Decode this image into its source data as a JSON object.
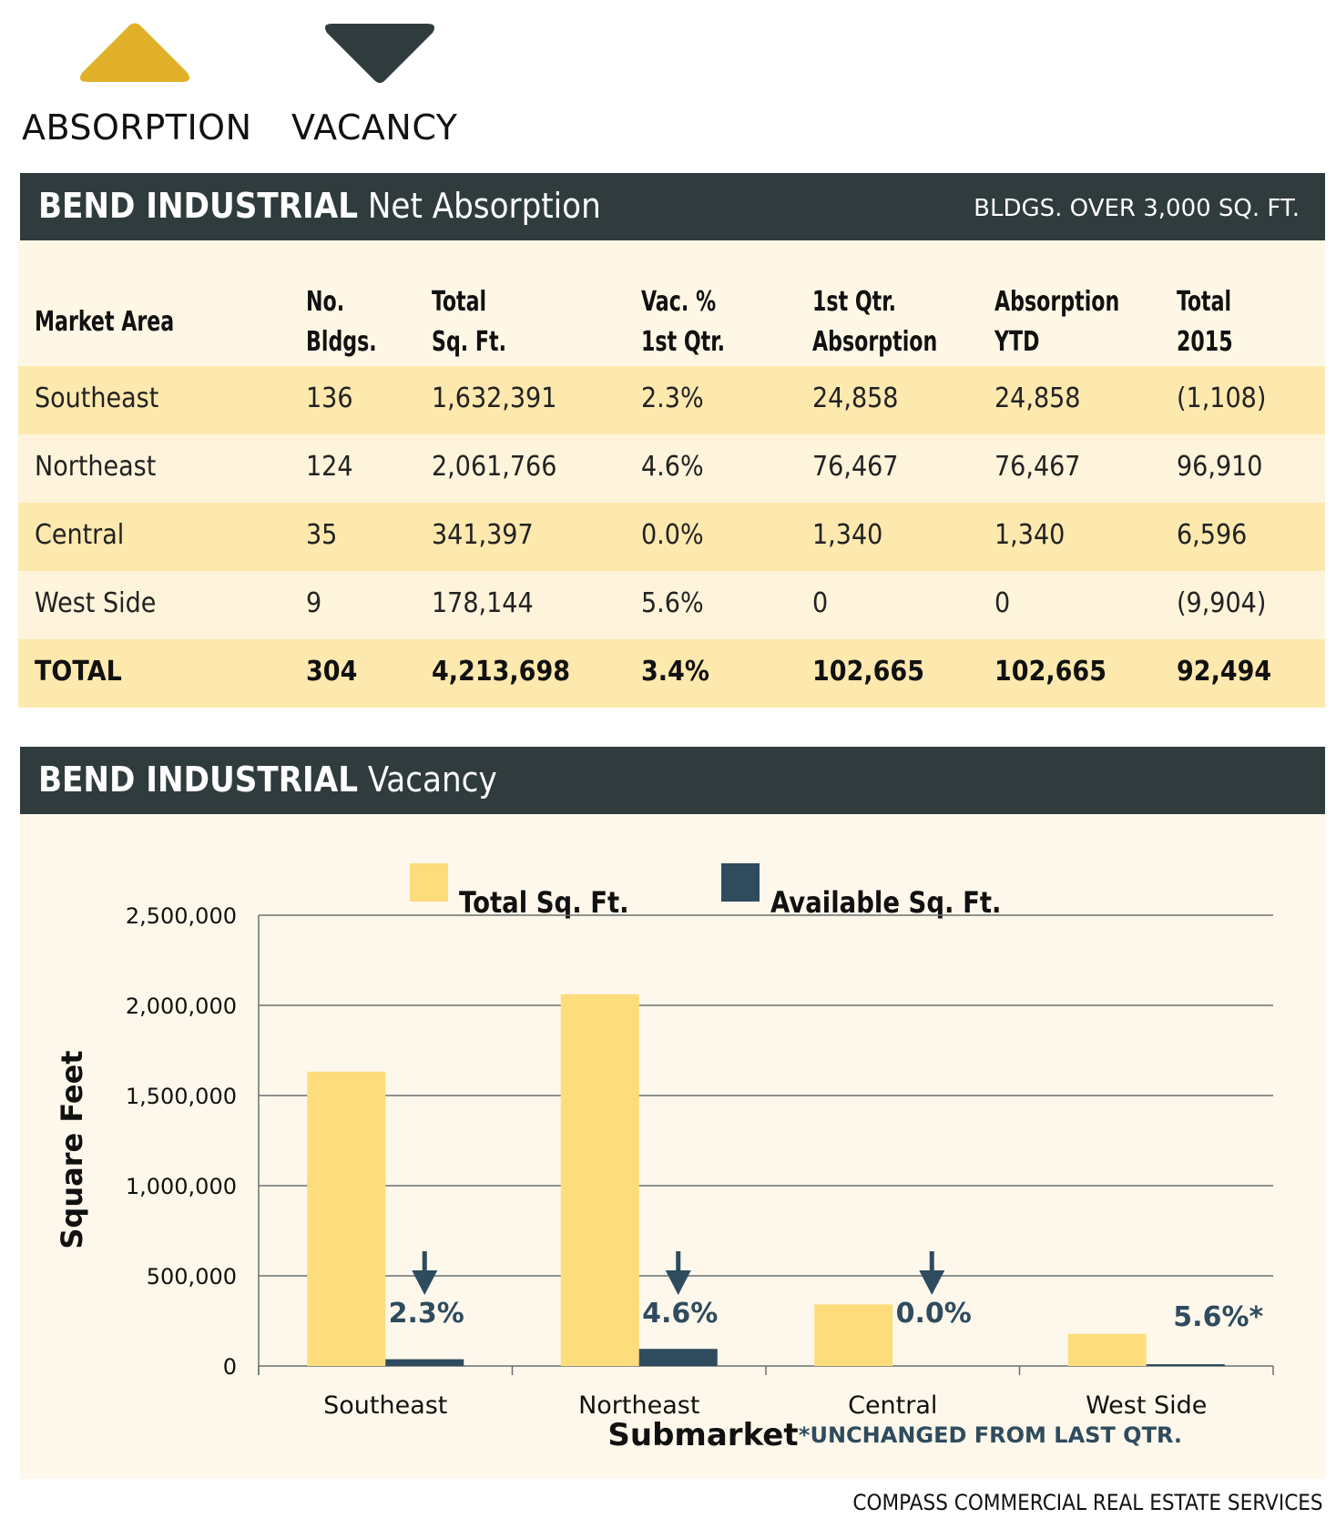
{
  "legend_top": {
    "absorption": {
      "label": "ABSORPTION",
      "icon": "triangle-up-icon",
      "color": "#e0b128"
    },
    "vacancy": {
      "label": "VACANCY",
      "icon": "triangle-down-icon",
      "color": "#2f3b3c"
    }
  },
  "absorption_section": {
    "title_bold": "BEND INDUSTRIAL",
    "title_rest": "Net Absorption",
    "subtitle": "BLDGS. OVER 3,000 SQ. FT."
  },
  "table": {
    "headers": [
      {
        "line1": "Market Area",
        "line2": ""
      },
      {
        "line1": "No.",
        "line2": "Bldgs."
      },
      {
        "line1": "Total",
        "line2": "Sq. Ft."
      },
      {
        "line1": "Vac. %",
        "line2": "1st Qtr."
      },
      {
        "line1": "1st Qtr.",
        "line2": "Absorption"
      },
      {
        "line1": "Absorption",
        "line2": "YTD"
      },
      {
        "line1": "Total",
        "line2": "2015"
      }
    ],
    "rows": [
      [
        "Southeast",
        "136",
        "1,632,391",
        "2.3%",
        "24,858",
        "24,858",
        "(1,108)"
      ],
      [
        "Northeast",
        "124",
        "2,061,766",
        "4.6%",
        "76,467",
        "76,467",
        "96,910"
      ],
      [
        "Central",
        "35",
        "341,397",
        "0.0%",
        "1,340",
        "1,340",
        "6,596"
      ],
      [
        "West Side",
        "9",
        "178,144",
        "5.6%",
        "0",
        "0",
        "(9,904)"
      ]
    ],
    "total": [
      "TOTAL",
      "304",
      "4,213,698",
      "3.4%",
      "102,665",
      "102,665",
      "92,494"
    ]
  },
  "vacancy_section": {
    "title_bold": "BEND INDUSTRIAL",
    "title_rest": "Vacancy"
  },
  "chart_data": {
    "type": "bar",
    "title": "BEND INDUSTRIAL Vacancy",
    "xlabel": "Submarket",
    "ylabel": "Square Feet",
    "categories": [
      "Southeast",
      "Northeast",
      "Central",
      "West Side"
    ],
    "series": [
      {
        "name": "Total Sq. Ft.",
        "color": "#fddc7b",
        "values": [
          1632391,
          2061766,
          341397,
          178144
        ]
      },
      {
        "name": "Available Sq. Ft.",
        "color": "#2f4b5e",
        "values": [
          37545,
          94841,
          0,
          9976
        ]
      }
    ],
    "ylim": [
      0,
      2500000
    ],
    "yticks": [
      0,
      500000,
      1000000,
      1500000,
      2000000,
      2500000
    ],
    "ytick_labels": [
      "0",
      "500,000",
      "1,000,000",
      "1,500,000",
      "2,000,000",
      "2,500,000"
    ],
    "grid": true,
    "legend_position": "top-center",
    "annotations": [
      {
        "category": "Southeast",
        "text": "2.3%",
        "arrow": "down"
      },
      {
        "category": "Northeast",
        "text": "4.6%",
        "arrow": "down"
      },
      {
        "category": "Central",
        "text": "0.0%",
        "arrow": "down"
      },
      {
        "category": "West Side",
        "text": "5.6%*",
        "arrow": "none"
      }
    ],
    "footnote": "*UNCHANGED FROM LAST QTR.",
    "annotation_color": "#2f4b5e"
  },
  "footer": {
    "source": "COMPASS COMMERCIAL REAL ESTATE SERVICES"
  }
}
